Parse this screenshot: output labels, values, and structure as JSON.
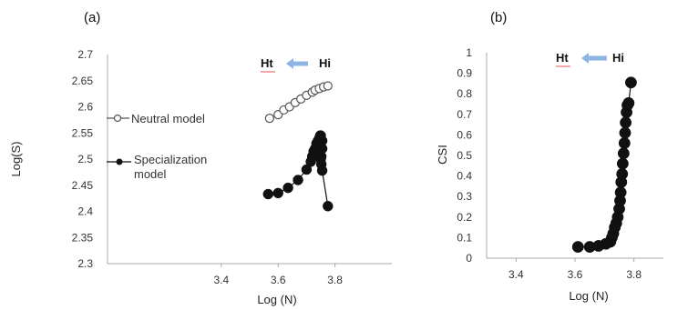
{
  "chart_data": [
    {
      "type": "scatter",
      "panel_label": "(a)",
      "xlabel": "Log (N)",
      "ylabel": "Log(S)",
      "xlim": [
        3.0,
        4.0
      ],
      "ylim": [
        2.3,
        2.7
      ],
      "x_ticks": [
        "3.4",
        "3.6",
        "3.8"
      ],
      "y_ticks": [
        "2.7",
        "2.65",
        "2.6",
        "2.55",
        "2.5",
        "2.45",
        "2.4",
        "2.35",
        "2.3"
      ],
      "grid": false,
      "legend_position": "left",
      "annotation": {
        "left": "Ht",
        "right": "Hi",
        "arrow_color": "#8db4e2",
        "underline_color": "#e05050"
      },
      "series": [
        {
          "name": "Neutral model",
          "marker": "open-circle",
          "color": "#555555",
          "points": [
            [
              3.57,
              2.578
            ],
            [
              3.6,
              2.585
            ],
            [
              3.62,
              2.594
            ],
            [
              3.64,
              2.6
            ],
            [
              3.66,
              2.608
            ],
            [
              3.68,
              2.615
            ],
            [
              3.7,
              2.622
            ],
            [
              3.72,
              2.628
            ],
            [
              3.73,
              2.632
            ],
            [
              3.745,
              2.635
            ],
            [
              3.76,
              2.638
            ],
            [
              3.775,
              2.64
            ]
          ]
        },
        {
          "name": "Specialization model",
          "marker": "filled-circle",
          "color": "#111111",
          "points": [
            [
              3.565,
              2.433
            ],
            [
              3.6,
              2.435
            ],
            [
              3.635,
              2.445
            ],
            [
              3.67,
              2.46
            ],
            [
              3.7,
              2.48
            ],
            [
              3.715,
              2.495
            ],
            [
              3.72,
              2.505
            ],
            [
              3.725,
              2.515
            ],
            [
              3.73,
              2.52
            ],
            [
              3.735,
              2.53
            ],
            [
              3.74,
              2.535
            ],
            [
              3.745,
              2.54
            ],
            [
              3.748,
              2.545
            ],
            [
              3.75,
              2.545
            ],
            [
              3.755,
              2.535
            ],
            [
              3.755,
              2.52
            ],
            [
              3.752,
              2.505
            ],
            [
              3.75,
              2.5
            ],
            [
              3.752,
              2.49
            ],
            [
              3.755,
              2.478
            ],
            [
              3.775,
              2.41
            ]
          ]
        }
      ]
    },
    {
      "type": "scatter",
      "panel_label": "(b)",
      "xlabel": "Log (N)",
      "ylabel": "CSI",
      "xlim": [
        3.3,
        3.9
      ],
      "ylim": [
        0,
        1
      ],
      "x_ticks": [
        "3.4",
        "3.6",
        "3.8"
      ],
      "y_ticks": [
        "1",
        "0.9",
        "0.8",
        "0.7",
        "0.6",
        "0.5",
        "0.4",
        "0.3",
        "0.2",
        "0.1",
        "0"
      ],
      "grid": false,
      "annotation": {
        "left": "Ht",
        "right": "Hi",
        "arrow_color": "#8db4e2",
        "underline_color": "#e05050"
      },
      "series": [
        {
          "marker": "filled-circle",
          "color": "#111111",
          "points": [
            [
              3.61,
              0.055
            ],
            [
              3.65,
              0.055
            ],
            [
              3.68,
              0.06
            ],
            [
              3.705,
              0.07
            ],
            [
              3.72,
              0.08
            ],
            [
              3.725,
              0.1
            ],
            [
              3.73,
              0.12
            ],
            [
              3.735,
              0.15
            ],
            [
              3.74,
              0.17
            ],
            [
              3.745,
              0.2
            ],
            [
              3.75,
              0.24
            ],
            [
              3.753,
              0.28
            ],
            [
              3.755,
              0.32
            ],
            [
              3.757,
              0.37
            ],
            [
              3.76,
              0.41
            ],
            [
              3.762,
              0.46
            ],
            [
              3.765,
              0.51
            ],
            [
              3.768,
              0.56
            ],
            [
              3.77,
              0.61
            ],
            [
              3.772,
              0.66
            ],
            [
              3.775,
              0.71
            ],
            [
              3.778,
              0.745
            ],
            [
              3.782,
              0.755
            ],
            [
              3.79,
              0.855
            ]
          ]
        }
      ]
    }
  ]
}
